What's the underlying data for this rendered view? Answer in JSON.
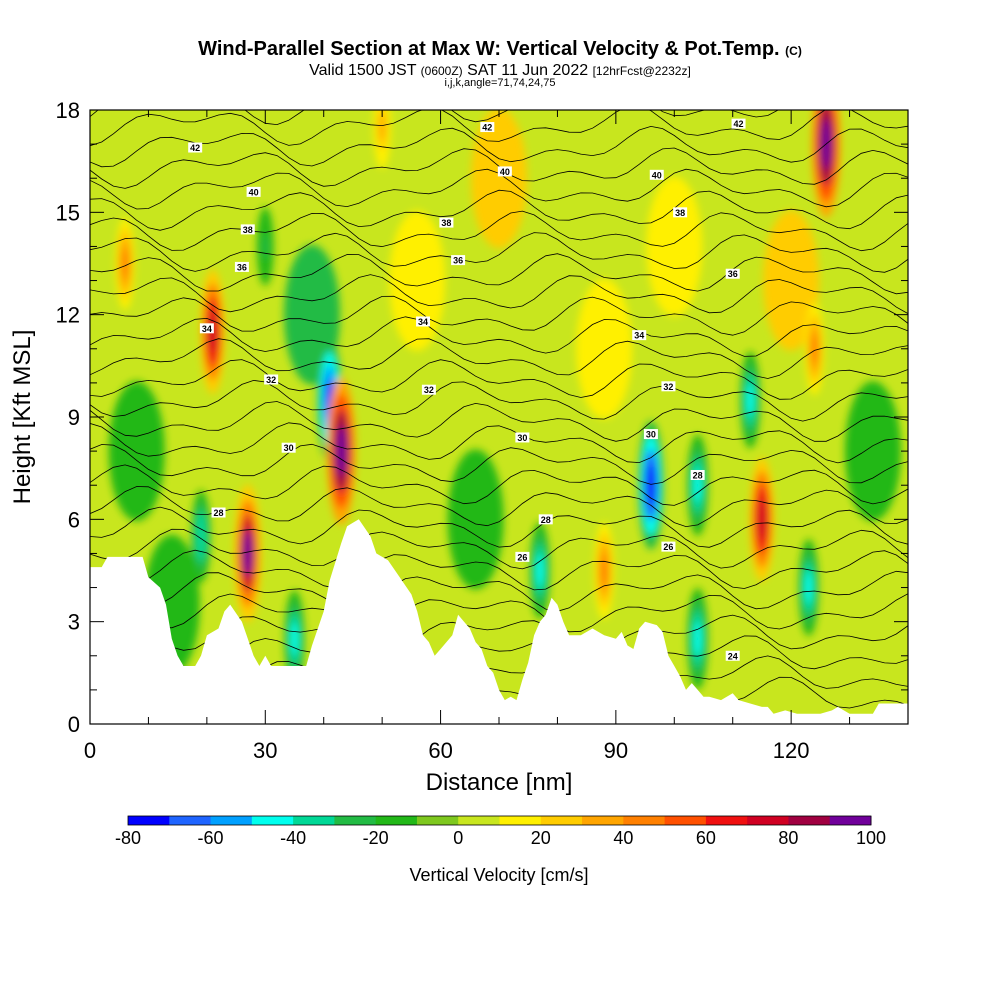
{
  "header": {
    "title": "Wind-Parallel Section at Max W: Vertical Velocity & Pot.Temp.",
    "title_unit": "(C)",
    "valid_prefix": "Valid 1500 JST",
    "valid_utc": "(0600Z)",
    "valid_date": "SAT 11 Jun 2022",
    "forecast": "[12hrFcst@2232z]",
    "indices": "i,j,k,angle=71,74,24,75"
  },
  "chart_data": {
    "type": "heatmap",
    "title": "Wind-Parallel Section at Max W: Vertical Velocity & Pot.Temp.",
    "xlabel": "Distance [nm]",
    "ylabel": "Height [Kft MSL]",
    "xlim": [
      0,
      140
    ],
    "ylim": [
      0,
      18
    ],
    "x_ticks": [
      "0",
      "30",
      "60",
      "90",
      "120"
    ],
    "y_ticks": [
      "0",
      "3",
      "6",
      "9",
      "12",
      "15",
      "18"
    ],
    "colorbar": {
      "label": "Vertical Velocity [cm/s]",
      "tick_labels": [
        "-80",
        "-60",
        "-40",
        "-20",
        "0",
        "20",
        "40",
        "60",
        "80",
        "100"
      ],
      "levels": [
        -80,
        -70,
        -60,
        -50,
        -40,
        -30,
        -20,
        -10,
        0,
        10,
        20,
        30,
        40,
        50,
        60,
        70,
        80,
        90,
        100
      ],
      "colors": [
        "#0000ff",
        "#1e64ff",
        "#00a0ff",
        "#00ffee",
        "#00d896",
        "#22bb44",
        "#22b818",
        "#7ec81e",
        "#c8e61e",
        "#fff000",
        "#ffcc00",
        "#ffa500",
        "#ff8000",
        "#ff5000",
        "#f01010",
        "#d00022",
        "#a00040",
        "#70009a"
      ]
    },
    "theta_contour_labels": [
      {
        "text": "42",
        "x": 18,
        "z": 16.9
      },
      {
        "text": "42",
        "x": 68,
        "z": 17.5
      },
      {
        "text": "42",
        "x": 111,
        "z": 17.6
      },
      {
        "text": "40",
        "x": 28,
        "z": 15.6
      },
      {
        "text": "40",
        "x": 71,
        "z": 16.2
      },
      {
        "text": "40",
        "x": 97,
        "z": 16.1
      },
      {
        "text": "38",
        "x": 27,
        "z": 14.5
      },
      {
        "text": "38",
        "x": 61,
        "z": 14.7
      },
      {
        "text": "38",
        "x": 101,
        "z": 15.0
      },
      {
        "text": "36",
        "x": 26,
        "z": 13.4
      },
      {
        "text": "36",
        "x": 63,
        "z": 13.6
      },
      {
        "text": "36",
        "x": 110,
        "z": 13.2
      },
      {
        "text": "34",
        "x": 20,
        "z": 11.6
      },
      {
        "text": "34",
        "x": 57,
        "z": 11.8
      },
      {
        "text": "34",
        "x": 94,
        "z": 11.4
      },
      {
        "text": "32",
        "x": 31,
        "z": 10.1
      },
      {
        "text": "32",
        "x": 58,
        "z": 9.8
      },
      {
        "text": "32",
        "x": 99,
        "z": 9.9
      },
      {
        "text": "30",
        "x": 34,
        "z": 8.1
      },
      {
        "text": "30",
        "x": 74,
        "z": 8.4
      },
      {
        "text": "30",
        "x": 96,
        "z": 8.5
      },
      {
        "text": "28",
        "x": 22,
        "z": 6.2
      },
      {
        "text": "28",
        "x": 78,
        "z": 6.0
      },
      {
        "text": "28",
        "x": 104,
        "z": 7.3
      },
      {
        "text": "26",
        "x": 74,
        "z": 4.9
      },
      {
        "text": "26",
        "x": 99,
        "z": 5.2
      },
      {
        "text": "24",
        "x": 110,
        "z": 2.0
      }
    ],
    "updrafts": [
      {
        "x": 21,
        "z": 11.5,
        "w": 75
      },
      {
        "x": 27,
        "z": 5.0,
        "w": 90
      },
      {
        "x": 43,
        "z": 8.0,
        "w": 100
      },
      {
        "x": 115,
        "z": 6.0,
        "w": 75
      },
      {
        "x": 126,
        "z": 17.0,
        "w": 100
      },
      {
        "x": 124,
        "z": 11.0,
        "w": 40
      },
      {
        "x": 88,
        "z": 4.5,
        "w": 45
      },
      {
        "x": 6,
        "z": 13.5,
        "w": 40
      },
      {
        "x": 50,
        "z": 17.5,
        "w": 30
      }
    ],
    "downdrafts": [
      {
        "x": 41,
        "z": 9.5,
        "w": -75
      },
      {
        "x": 96,
        "z": 7.0,
        "w": -80
      },
      {
        "x": 77,
        "z": 4.5,
        "w": -45
      },
      {
        "x": 35,
        "z": 2.5,
        "w": -45
      },
      {
        "x": 123,
        "z": 4.0,
        "w": -45
      },
      {
        "x": 104,
        "z": 7.0,
        "w": -50
      },
      {
        "x": 104,
        "z": 2.5,
        "w": -50
      },
      {
        "x": 113,
        "z": 9.5,
        "w": -45
      },
      {
        "x": 19,
        "z": 5.5,
        "w": -40
      },
      {
        "x": 30,
        "z": 14.0,
        "w": -25
      }
    ],
    "terrain_kft": [
      [
        0,
        4.6
      ],
      [
        2,
        4.6
      ],
      [
        3,
        4.9
      ],
      [
        9,
        4.9
      ],
      [
        10,
        4.3
      ],
      [
        12,
        4.0
      ],
      [
        13,
        3.5
      ],
      [
        13.5,
        3.0
      ],
      [
        14,
        2.5
      ],
      [
        15,
        2.0
      ],
      [
        16,
        1.7
      ],
      [
        18,
        1.7
      ],
      [
        19,
        2.0
      ],
      [
        20,
        2.6
      ],
      [
        22,
        2.8
      ],
      [
        23,
        3.3
      ],
      [
        24,
        3.5
      ],
      [
        26,
        3.0
      ],
      [
        27,
        2.5
      ],
      [
        28,
        2.0
      ],
      [
        29,
        1.7
      ],
      [
        30,
        2.0
      ],
      [
        31,
        1.7
      ],
      [
        37,
        1.7
      ],
      [
        38,
        2.3
      ],
      [
        40,
        3.3
      ],
      [
        41,
        4.2
      ],
      [
        43,
        5.3
      ],
      [
        44,
        5.8
      ],
      [
        45,
        5.9
      ],
      [
        46,
        6.0
      ],
      [
        48,
        5.5
      ],
      [
        49,
        5.0
      ],
      [
        51,
        4.8
      ],
      [
        53,
        4.3
      ],
      [
        55,
        3.8
      ],
      [
        56,
        3.3
      ],
      [
        57,
        2.6
      ],
      [
        58,
        2.4
      ],
      [
        59,
        2.0
      ],
      [
        60,
        2.2
      ],
      [
        62,
        2.6
      ],
      [
        63,
        3.2
      ],
      [
        65,
        2.8
      ],
      [
        66,
        2.4
      ],
      [
        67,
        2.2
      ],
      [
        68,
        1.7
      ],
      [
        69,
        1.5
      ],
      [
        70,
        1.0
      ],
      [
        71,
        0.7
      ],
      [
        72,
        0.8
      ],
      [
        73,
        0.7
      ],
      [
        74,
        1.3
      ],
      [
        75,
        1.8
      ],
      [
        76,
        2.6
      ],
      [
        77,
        3.0
      ],
      [
        78,
        3.2
      ],
      [
        79,
        3.7
      ],
      [
        80,
        3.5
      ],
      [
        81,
        3.0
      ],
      [
        82,
        2.6
      ],
      [
        84,
        2.6
      ],
      [
        86,
        2.8
      ],
      [
        88,
        2.6
      ],
      [
        90,
        2.5
      ],
      [
        91,
        2.7
      ],
      [
        92,
        2.3
      ],
      [
        93,
        2.2
      ],
      [
        94,
        2.8
      ],
      [
        95,
        3.0
      ],
      [
        97,
        2.9
      ],
      [
        98,
        2.7
      ],
      [
        99,
        2.0
      ],
      [
        100,
        1.7
      ],
      [
        101,
        1.4
      ],
      [
        102,
        1.0
      ],
      [
        103,
        1.2
      ],
      [
        104,
        1.0
      ],
      [
        105,
        0.8
      ],
      [
        106,
        0.8
      ],
      [
        108,
        0.7
      ],
      [
        110,
        0.9
      ],
      [
        111,
        0.7
      ],
      [
        113,
        0.6
      ],
      [
        115,
        0.5
      ],
      [
        116,
        0.5
      ],
      [
        117,
        0.3
      ],
      [
        119,
        0.4
      ],
      [
        121,
        0.3
      ],
      [
        125,
        0.3
      ],
      [
        127,
        0.4
      ],
      [
        128,
        0.5
      ],
      [
        130,
        0.3
      ],
      [
        134,
        0.3
      ],
      [
        135,
        0.6
      ],
      [
        138,
        0.6
      ],
      [
        140,
        0.6
      ]
    ]
  }
}
